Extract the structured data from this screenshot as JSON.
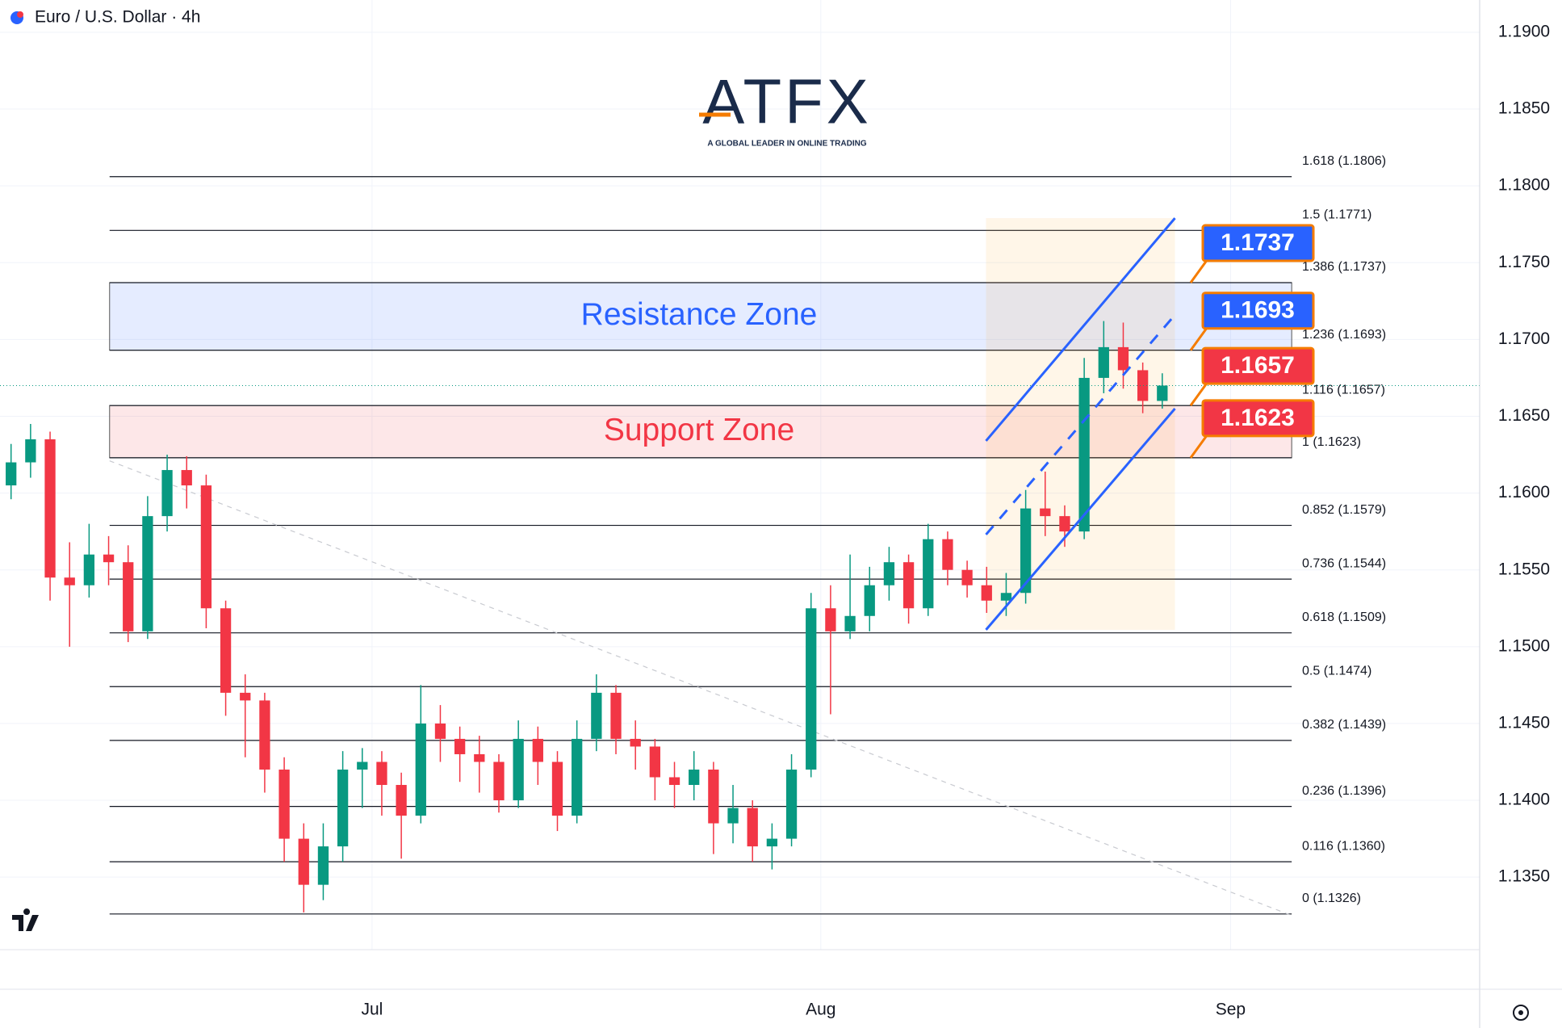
{
  "chart_data": {
    "type": "candlestick",
    "title": "Euro / U.S. Dollar · 4h",
    "logo": {
      "name": "ATFX",
      "tagline": "A GLOBAL LEADER IN ONLINE TRADING"
    },
    "x": [
      -111,
      -105,
      -99,
      -93,
      -87,
      -81,
      -75,
      -69,
      -63,
      -57,
      -51,
      -45,
      -39,
      -33,
      -27,
      -21,
      -15,
      -9,
      -3,
      3,
      9,
      15,
      21,
      27,
      33,
      39,
      45,
      51,
      57,
      63,
      69,
      75,
      81,
      87,
      93,
      99,
      105,
      111,
      117,
      123,
      129,
      135,
      141,
      147,
      153,
      159,
      165,
      171,
      177,
      183,
      189,
      195,
      201,
      207,
      213,
      219,
      225,
      231,
      237,
      243
    ],
    "open": [
      1.1605,
      1.162,
      1.1635,
      1.1545,
      1.154,
      1.156,
      1.1555,
      1.151,
      1.1585,
      1.1615,
      1.1605,
      1.1525,
      1.147,
      1.1465,
      1.142,
      1.1375,
      1.1345,
      1.137,
      1.142,
      1.1425,
      1.141,
      1.139,
      1.145,
      1.144,
      1.143,
      1.1425,
      1.14,
      1.144,
      1.1425,
      1.139,
      1.144,
      1.147,
      1.144,
      1.1435,
      1.1415,
      1.141,
      1.142,
      1.1385,
      1.1395,
      1.137,
      1.1375,
      1.142,
      1.1525,
      1.151,
      1.152,
      1.154,
      1.1555,
      1.1525,
      1.157,
      1.155,
      1.154,
      1.153,
      1.1535,
      1.159,
      1.1585,
      1.1575,
      1.1675,
      1.1695,
      1.168,
      1.166
    ],
    "high": [
      1.1632,
      1.1645,
      1.164,
      1.1568,
      1.158,
      1.1572,
      1.1566,
      1.1598,
      1.1625,
      1.1624,
      1.1612,
      1.153,
      1.1482,
      1.147,
      1.1428,
      1.1385,
      1.1385,
      1.1432,
      1.1434,
      1.1432,
      1.1418,
      1.1475,
      1.1462,
      1.1448,
      1.1442,
      1.143,
      1.1452,
      1.1448,
      1.1432,
      1.1452,
      1.1482,
      1.1475,
      1.1452,
      1.144,
      1.1425,
      1.1432,
      1.1425,
      1.141,
      1.14,
      1.1385,
      1.143,
      1.1535,
      1.154,
      1.156,
      1.1552,
      1.1565,
      1.156,
      1.158,
      1.1575,
      1.1556,
      1.1552,
      1.1548,
      1.1602,
      1.1614,
      1.1592,
      1.1688,
      1.1712,
      1.1711,
      1.1685,
      1.1678
    ],
    "low": [
      1.1596,
      1.161,
      1.153,
      1.15,
      1.1532,
      1.154,
      1.1503,
      1.1505,
      1.1575,
      1.159,
      1.1512,
      1.1455,
      1.1428,
      1.1405,
      1.136,
      1.1327,
      1.1335,
      1.136,
      1.1395,
      1.139,
      1.1362,
      1.1385,
      1.1425,
      1.1412,
      1.1405,
      1.1392,
      1.1395,
      1.141,
      1.138,
      1.1385,
      1.1432,
      1.143,
      1.142,
      1.14,
      1.1395,
      1.14,
      1.1365,
      1.1372,
      1.136,
      1.1355,
      1.137,
      1.1415,
      1.1456,
      1.1505,
      1.151,
      1.153,
      1.1515,
      1.152,
      1.154,
      1.1532,
      1.1522,
      1.152,
      1.1528,
      1.1572,
      1.1565,
      1.157,
      1.1665,
      1.1668,
      1.1652,
      1.1655
    ],
    "close": [
      1.162,
      1.1635,
      1.1545,
      1.154,
      1.156,
      1.1555,
      1.151,
      1.1585,
      1.1615,
      1.1605,
      1.1525,
      1.147,
      1.1465,
      1.142,
      1.1375,
      1.1345,
      1.137,
      1.142,
      1.1425,
      1.141,
      1.139,
      1.145,
      1.144,
      1.143,
      1.1425,
      1.14,
      1.144,
      1.1425,
      1.139,
      1.144,
      1.147,
      1.144,
      1.1435,
      1.1415,
      1.141,
      1.142,
      1.1385,
      1.1395,
      1.137,
      1.1375,
      1.142,
      1.1525,
      1.151,
      1.152,
      1.154,
      1.1555,
      1.1525,
      1.157,
      1.155,
      1.154,
      1.153,
      1.1535,
      1.159,
      1.1585,
      1.1575,
      1.1675,
      1.1695,
      1.168,
      1.166,
      1.167
    ],
    "up_color": "#089981",
    "down_color": "#f23645",
    "xlim": [
      -114.4,
      340.6
    ],
    "xticks": [
      {
        "value": 0,
        "label": "Jul"
      },
      {
        "value": 138,
        "label": "Aug"
      },
      {
        "value": 264,
        "label": "Sep"
      }
    ],
    "ylim": [
      1.1277,
      1.1921
    ],
    "yticks": [
      {
        "value": 1.19,
        "label": "1.1900"
      },
      {
        "value": 1.185,
        "label": "1.1850"
      },
      {
        "value": 1.18,
        "label": "1.1800"
      },
      {
        "value": 1.175,
        "label": "1.1750"
      },
      {
        "value": 1.17,
        "label": "1.1700"
      },
      {
        "value": 1.165,
        "label": "1.1650"
      },
      {
        "value": 1.16,
        "label": "1.1600"
      },
      {
        "value": 1.155,
        "label": "1.1550"
      },
      {
        "value": 1.15,
        "label": "1.1500"
      },
      {
        "value": 1.145,
        "label": "1.1450"
      },
      {
        "value": 1.14,
        "label": "1.1400"
      },
      {
        "value": 1.135,
        "label": "1.1350"
      }
    ],
    "grid": true,
    "fib_levels": {
      "x": [
        -80.7,
        282.8
      ],
      "levels": [
        {
          "value": 1.1806,
          "label": "1.618 (1.1806)"
        },
        {
          "value": 1.1771,
          "label": "1.5 (1.1771)"
        },
        {
          "value": 1.1737,
          "label": "1.386 (1.1737)"
        },
        {
          "value": 1.1693,
          "label": "1.236 (1.1693)"
        },
        {
          "value": 1.1657,
          "label": "1.116 (1.1657)"
        },
        {
          "value": 1.1623,
          "label": "1 (1.1623)"
        },
        {
          "value": 1.1579,
          "label": "0.852 (1.1579)"
        },
        {
          "value": 1.1544,
          "label": "0.736 (1.1544)"
        },
        {
          "value": 1.1509,
          "label": "0.618 (1.1509)"
        },
        {
          "value": 1.1474,
          "label": "0.5 (1.1474)"
        },
        {
          "value": 1.1439,
          "label": "0.382 (1.1439)"
        },
        {
          "value": 1.1396,
          "label": "0.236 (1.1396)"
        },
        {
          "value": 1.136,
          "label": "0.116 (1.1360)"
        },
        {
          "value": 1.1326,
          "label": "0 (1.1326)"
        }
      ]
    },
    "zones": [
      {
        "label": "Resistance Zone",
        "range": [
          1.1693,
          1.1737
        ],
        "color": "#2962ff"
      },
      {
        "label": "Support Zone",
        "range": [
          1.1623,
          1.1657
        ],
        "color": "#f23645"
      }
    ],
    "callouts": {
      "values": [
        1.1737,
        1.1693,
        1.1657,
        1.1623
      ],
      "colors": [
        "#2962ff",
        "#2962ff",
        "#f23645",
        "#f23645"
      ]
    },
    "channel": {
      "x": [
        188.8,
        246.9
      ],
      "lower": [
        1.1511,
        1.1655
      ],
      "middle": [
        1.1573,
        1.1716
      ],
      "upper": [
        1.1634,
        1.1779
      ],
      "color": "#2962ff"
    },
    "trendline": {
      "x": [
        -80.7,
        282.8
      ],
      "y": [
        1.1621,
        1.1325
      ]
    }
  }
}
